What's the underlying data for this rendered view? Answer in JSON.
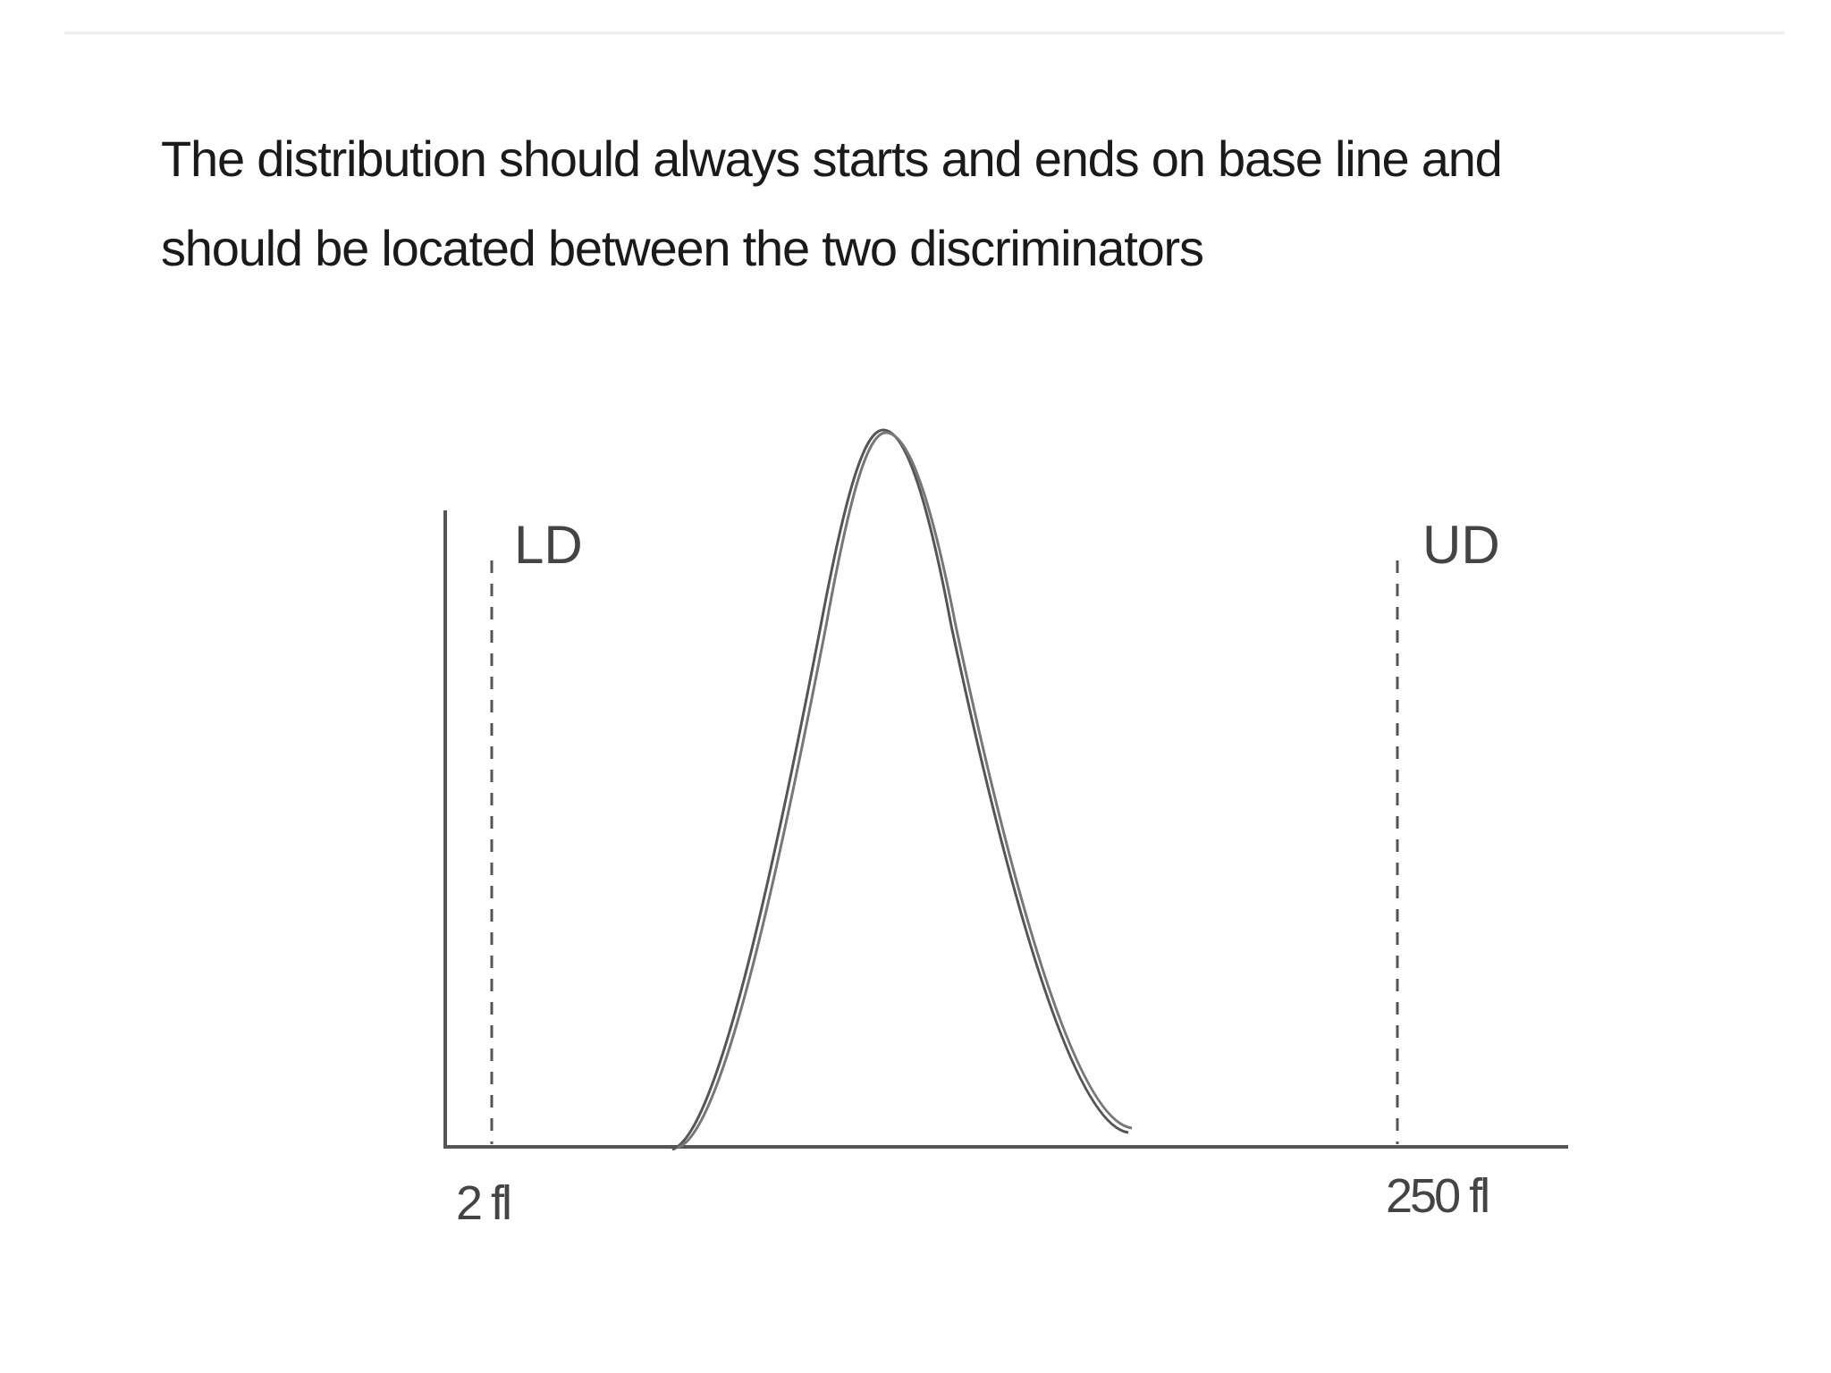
{
  "heading": {
    "lines": [
      "The distribution should always starts and ends on base line and",
      "should be located between the two discriminators"
    ]
  },
  "diagram": {
    "lower_label": "LD",
    "upper_label": "UD",
    "lower_tick": "2 fl",
    "upper_tick": "250 fl"
  }
}
